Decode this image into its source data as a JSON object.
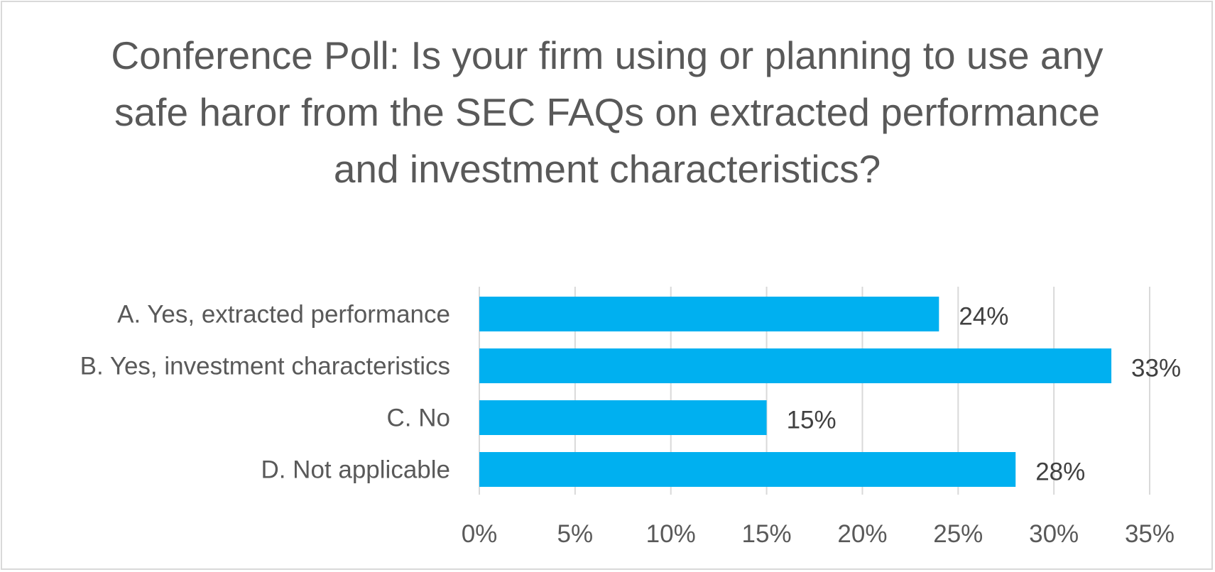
{
  "chart_data": {
    "type": "bar",
    "orientation": "horizontal",
    "title": "Conference Poll: Is your firm using or planning to use any safe haror from the SEC FAQs on extracted performance and investment characteristics?",
    "categories": [
      "A. Yes, extracted performance",
      "B. Yes, investment characteristics",
      "C. No",
      "D. Not applicable"
    ],
    "values": [
      24,
      33,
      15,
      28
    ],
    "value_labels": [
      "24%",
      "33%",
      "15%",
      "28%"
    ],
    "xlim": [
      0,
      35
    ],
    "xticks": [
      0,
      5,
      10,
      15,
      20,
      25,
      30,
      35
    ],
    "xtick_labels": [
      "0%",
      "5%",
      "10%",
      "15%",
      "20%",
      "25%",
      "30%",
      "35%"
    ],
    "xlabel": "",
    "ylabel": "",
    "grid": "vertical",
    "legend": "none",
    "colors": {
      "bar": "#00b0f0",
      "grid": "#d9d9d9",
      "text": "#595959",
      "data_label": "#404040",
      "border": "#d9d9d9"
    }
  }
}
